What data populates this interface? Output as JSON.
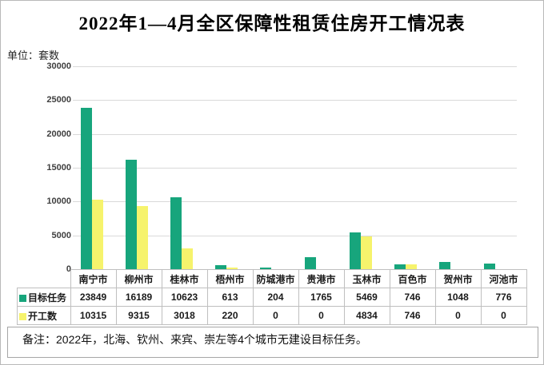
{
  "title": "2022年1—4月全区保障性租赁住房开工情况表",
  "unit_label": "单位：套数",
  "remark": "备注：2022年，北海、钦州、来宾、崇左等4个城市无建设目标任务。",
  "colors": {
    "target_green": "#17A57C",
    "started_yellow": "#F6F36C",
    "gridline": "#D9D9D9",
    "table_border": "#BFBFBF",
    "tick_text": "#3F3F3F",
    "title_text": "#000000"
  },
  "chart_data": {
    "type": "bar",
    "title": "2022年1—4月全区保障性租赁住房开工情况表",
    "ylabel": "套数",
    "categories": [
      "南宁市",
      "柳州市",
      "桂林市",
      "梧州市",
      "防城港市",
      "贵港市",
      "玉林市",
      "百色市",
      "贺州市",
      "河池市"
    ],
    "series": [
      {
        "name": "目标任务",
        "color": "#17A57C",
        "values": [
          23849,
          16189,
          10623,
          613,
          204,
          1765,
          5469,
          746,
          1048,
          776
        ]
      },
      {
        "name": "开工数",
        "color": "#F6F36C",
        "values": [
          10315,
          9315,
          3018,
          220,
          0,
          0,
          4834,
          746,
          0,
          0
        ]
      }
    ],
    "ylim": [
      0,
      30000
    ],
    "yticks": [
      0,
      5000,
      10000,
      15000,
      20000,
      25000,
      30000
    ],
    "grid": true,
    "legend_position": "table-row-labels"
  }
}
